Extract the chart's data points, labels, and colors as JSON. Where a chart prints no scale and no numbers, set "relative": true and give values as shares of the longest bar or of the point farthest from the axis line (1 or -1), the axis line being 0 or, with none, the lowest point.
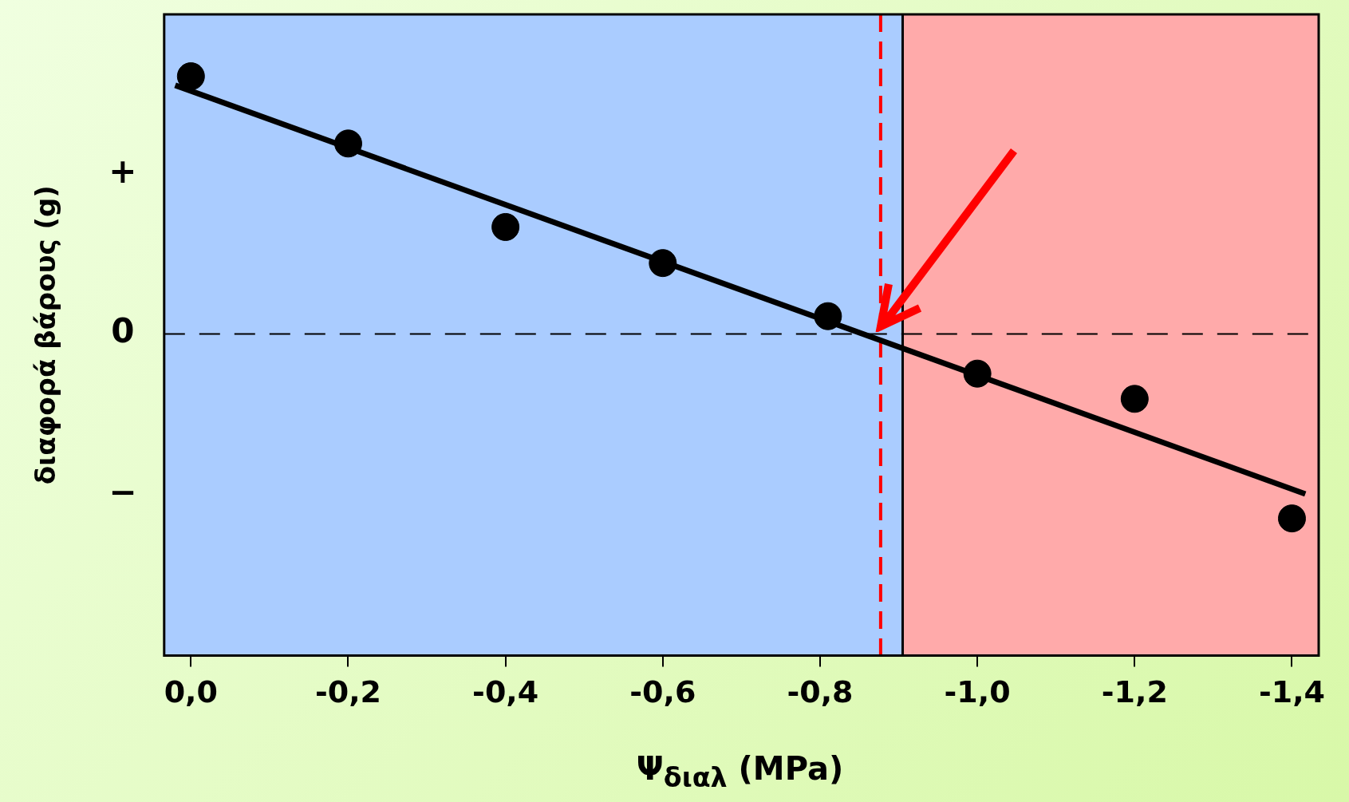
{
  "chart_data": {
    "type": "scatter",
    "xlabel": "Ψ$_{διαλ}$ (MPa)",
    "ylabel": "διαφορά βάρους (g)",
    "relative": true,
    "x": [
      0,
      -0.2,
      -0.4,
      -0.6,
      -0.81,
      -1.0,
      -1.2,
      -1.4
    ],
    "series": [
      {
        "color": "#000000",
        "values": [
          1.0,
          0.739,
          0.415,
          0.275,
          0.069,
          -0.154,
          -0.252,
          -0.716
        ]
      },
      {
        "type": "line",
        "color": "#000000",
        "marker": "none",
        "x": [
          0.02,
          -1.417
        ],
        "values": [
          0.965,
          -0.621
        ]
      }
    ],
    "xlim": [
      0.034,
      -1.434
    ],
    "xticks": [
      {
        "value": 0,
        "label": "0,0"
      },
      {
        "value": -0.2,
        "label": "-0,2"
      },
      {
        "value": -0.4,
        "label": "-0,4"
      },
      {
        "value": -0.6,
        "label": "-0,6"
      },
      {
        "value": -0.8,
        "label": "-0,8"
      },
      {
        "value": -1.0,
        "label": "-1,0"
      },
      {
        "value": -1.2,
        "label": "-1,2"
      },
      {
        "value": -1.4,
        "label": "-1,4"
      }
    ],
    "annotations": [
      "+",
      "−"
    ],
    "ref_lines": [
      {
        "axis": "y",
        "value": 0,
        "label": "0",
        "line_style": "dashed",
        "color": "#000000"
      },
      {
        "axis": "x",
        "value": -0.905,
        "color": "#000000"
      },
      {
        "axis": "x",
        "value": -0.877,
        "line_style": "dashed",
        "color": "#ff0000"
      }
    ],
    "bands": [
      {
        "axis": "x",
        "from": 0.034,
        "to": -0.905,
        "color": "#aaccff"
      },
      {
        "axis": "x",
        "from": -0.905,
        "to": -1.434,
        "color": "#ffaaaa"
      }
    ],
    "legend": false,
    "marker": "circle"
  }
}
